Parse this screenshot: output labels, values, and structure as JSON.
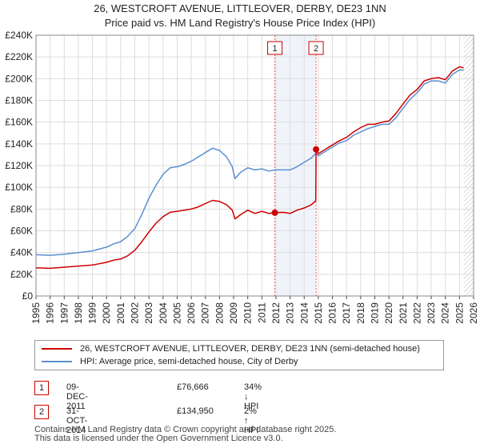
{
  "header": {
    "title": "26, WESTCROFT AVENUE, LITTLEOVER, DERBY, DE23 1NN",
    "subtitle": "Price paid vs. HM Land Registry's House Price Index (HPI)"
  },
  "chart_data": {
    "type": "line",
    "xlim": [
      1995,
      2026
    ],
    "ylim": [
      0,
      240000
    ],
    "x_ticks": [
      "1995",
      "1996",
      "1997",
      "1998",
      "1999",
      "2000",
      "2001",
      "2002",
      "2003",
      "2004",
      "2005",
      "2006",
      "2007",
      "2008",
      "2009",
      "2010",
      "2011",
      "2012",
      "2013",
      "2014",
      "2015",
      "2016",
      "2017",
      "2018",
      "2019",
      "2020",
      "2021",
      "2022",
      "2023",
      "2024",
      "2025",
      "2026"
    ],
    "y_ticks": [
      {
        "value": 0,
        "label": "£0"
      },
      {
        "value": 20000,
        "label": "£20K"
      },
      {
        "value": 40000,
        "label": "£40K"
      },
      {
        "value": 60000,
        "label": "£60K"
      },
      {
        "value": 80000,
        "label": "£80K"
      },
      {
        "value": 100000,
        "label": "£100K"
      },
      {
        "value": 120000,
        "label": "£120K"
      },
      {
        "value": 140000,
        "label": "£140K"
      },
      {
        "value": 160000,
        "label": "£160K"
      },
      {
        "value": 180000,
        "label": "£180K"
      },
      {
        "value": 200000,
        "label": "£200K"
      },
      {
        "value": 220000,
        "label": "£220K"
      },
      {
        "value": 240000,
        "label": "£240K"
      }
    ],
    "grid": true,
    "series": [
      {
        "name": "26, WESTCROFT AVENUE, LITTLEOVER, DERBY, DE23 1NN (semi-detached house)",
        "color": "#cc0000",
        "points": [
          [
            1995.0,
            26000
          ],
          [
            1996.0,
            25500
          ],
          [
            1997.0,
            26500
          ],
          [
            1998.0,
            27500
          ],
          [
            1999.0,
            28500
          ],
          [
            2000.0,
            31000
          ],
          [
            2000.5,
            33000
          ],
          [
            2001.0,
            34000
          ],
          [
            2001.5,
            37000
          ],
          [
            2002.0,
            42000
          ],
          [
            2002.5,
            50000
          ],
          [
            2003.0,
            59000
          ],
          [
            2003.5,
            67000
          ],
          [
            2004.0,
            73000
          ],
          [
            2004.5,
            77000
          ],
          [
            2005.0,
            78000
          ],
          [
            2005.5,
            79000
          ],
          [
            2006.0,
            80000
          ],
          [
            2006.5,
            82000
          ],
          [
            2007.0,
            85000
          ],
          [
            2007.5,
            88000
          ],
          [
            2008.0,
            87000
          ],
          [
            2008.5,
            84000
          ],
          [
            2008.9,
            79000
          ],
          [
            2009.1,
            71000
          ],
          [
            2009.5,
            75000
          ],
          [
            2010.0,
            79000
          ],
          [
            2010.5,
            76000
          ],
          [
            2011.0,
            78000
          ],
          [
            2011.5,
            76000
          ],
          [
            2011.92,
            76666
          ],
          [
            2012.5,
            77000
          ],
          [
            2013.0,
            76000
          ],
          [
            2013.5,
            79000
          ],
          [
            2014.0,
            81000
          ],
          [
            2014.5,
            84000
          ],
          [
            2014.82,
            87500
          ],
          [
            2014.84,
            134950
          ],
          [
            2015.0,
            131000
          ],
          [
            2015.5,
            135000
          ],
          [
            2016.0,
            139000
          ],
          [
            2016.5,
            143000
          ],
          [
            2017.0,
            146000
          ],
          [
            2017.5,
            151000
          ],
          [
            2018.0,
            155000
          ],
          [
            2018.5,
            158000
          ],
          [
            2019.0,
            158000
          ],
          [
            2019.5,
            160000
          ],
          [
            2020.0,
            161000
          ],
          [
            2020.5,
            168000
          ],
          [
            2020.9,
            175000
          ],
          [
            2021.5,
            185000
          ],
          [
            2022.0,
            190000
          ],
          [
            2022.5,
            198000
          ],
          [
            2023.0,
            200000
          ],
          [
            2023.5,
            201000
          ],
          [
            2024.0,
            199000
          ],
          [
            2024.5,
            207000
          ],
          [
            2025.0,
            211000
          ],
          [
            2025.3,
            210000
          ]
        ]
      },
      {
        "name": "HPI: Average price, semi-detached house, City of Derby",
        "color": "#5b8fd0",
        "points": [
          [
            1995.0,
            38000
          ],
          [
            1996.0,
            37500
          ],
          [
            1997.0,
            38500
          ],
          [
            1998.0,
            40000
          ],
          [
            1999.0,
            41500
          ],
          [
            2000.0,
            45000
          ],
          [
            2000.5,
            48000
          ],
          [
            2001.0,
            50000
          ],
          [
            2001.5,
            55000
          ],
          [
            2002.0,
            62000
          ],
          [
            2002.5,
            75000
          ],
          [
            2003.0,
            90000
          ],
          [
            2003.5,
            102000
          ],
          [
            2004.0,
            112000
          ],
          [
            2004.5,
            118000
          ],
          [
            2005.0,
            119000
          ],
          [
            2005.5,
            121000
          ],
          [
            2006.0,
            124000
          ],
          [
            2006.5,
            128000
          ],
          [
            2007.0,
            132000
          ],
          [
            2007.5,
            136000
          ],
          [
            2008.0,
            134000
          ],
          [
            2008.5,
            128000
          ],
          [
            2008.9,
            119000
          ],
          [
            2009.1,
            108000
          ],
          [
            2009.5,
            114000
          ],
          [
            2010.0,
            118000
          ],
          [
            2010.5,
            116000
          ],
          [
            2011.0,
            117000
          ],
          [
            2011.5,
            115000
          ],
          [
            2011.92,
            116000
          ],
          [
            2012.5,
            116000
          ],
          [
            2013.0,
            116000
          ],
          [
            2013.5,
            119000
          ],
          [
            2014.0,
            123000
          ],
          [
            2014.5,
            127000
          ],
          [
            2014.84,
            131500
          ],
          [
            2015.0,
            129000
          ],
          [
            2015.5,
            133000
          ],
          [
            2016.0,
            137000
          ],
          [
            2016.5,
            141000
          ],
          [
            2017.0,
            143000
          ],
          [
            2017.5,
            148000
          ],
          [
            2018.0,
            151000
          ],
          [
            2018.5,
            154000
          ],
          [
            2019.0,
            156000
          ],
          [
            2019.5,
            158000
          ],
          [
            2020.0,
            158000
          ],
          [
            2020.5,
            164000
          ],
          [
            2020.9,
            171000
          ],
          [
            2021.5,
            181000
          ],
          [
            2022.0,
            187000
          ],
          [
            2022.5,
            195000
          ],
          [
            2023.0,
            198000
          ],
          [
            2023.5,
            198000
          ],
          [
            2024.0,
            196000
          ],
          [
            2024.5,
            204000
          ],
          [
            2025.0,
            208000
          ],
          [
            2025.3,
            208000
          ]
        ]
      }
    ],
    "shaded_region": [
      2011.92,
      2014.84
    ],
    "future_cutoff": 2025.3,
    "markers": [
      {
        "label": "1",
        "x": 2011.92,
        "y": 76666
      },
      {
        "label": "2",
        "x": 2014.84,
        "y": 134950
      }
    ]
  },
  "legend": {
    "items": [
      {
        "label": "26, WESTCROFT AVENUE, LITTLEOVER, DERBY, DE23 1NN (semi-detached house)",
        "color": "#cc0000"
      },
      {
        "label": "HPI: Average price, semi-detached house, City of Derby",
        "color": "#5b8fd0"
      }
    ]
  },
  "transactions": [
    {
      "num": "1",
      "date": "09-DEC-2011",
      "price": "£76,666",
      "hpi": "34% ↓ HPI"
    },
    {
      "num": "2",
      "date": "31-OCT-2014",
      "price": "£134,950",
      "hpi": "2% ↑ HPI"
    }
  ],
  "footer": {
    "line1": "Contains HM Land Registry data © Crown copyright and database right 2025.",
    "line2": "This data is licensed under the Open Government Licence v3.0."
  }
}
